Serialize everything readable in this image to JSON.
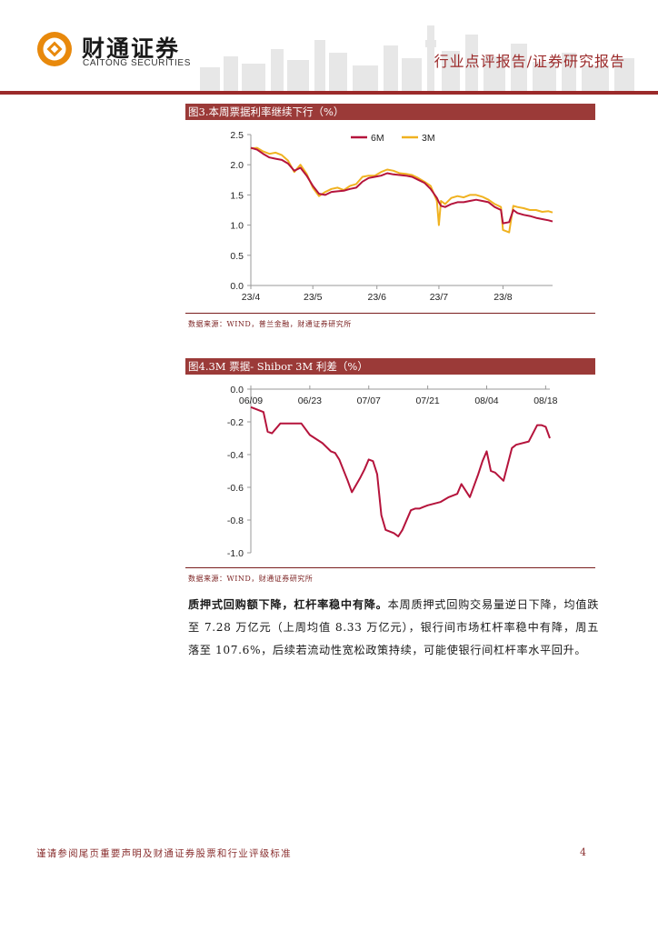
{
  "header": {
    "brand_cn": "财通证券",
    "brand_en": "CAITONG SECURITIES",
    "report_type": "行业点评报告/证券研究报告",
    "colors": {
      "accent": "#9b2a2a",
      "logo": "#e8890c"
    }
  },
  "figure3": {
    "title": "图3.本周票据利率继续下行（%）",
    "source": "数据来源：WIND，普兰金融，财通证券研究所",
    "chart_data": {
      "type": "line",
      "title": "",
      "xlabel": "",
      "ylabel": "",
      "ylim": [
        0,
        2.5
      ],
      "yticks": [
        "0.0",
        "0.5",
        "1.0",
        "1.5",
        "2.0",
        "2.5"
      ],
      "xticks": [
        "23/4",
        "23/5",
        "23/6",
        "23/7",
        "23/8"
      ],
      "x": [
        "2023-04-01",
        "2023-04-04",
        "2023-04-07",
        "2023-04-10",
        "2023-04-13",
        "2023-04-16",
        "2023-04-19",
        "2023-04-22",
        "2023-04-25",
        "2023-04-28",
        "2023-05-01",
        "2023-05-04",
        "2023-05-07",
        "2023-05-10",
        "2023-05-13",
        "2023-05-16",
        "2023-05-19",
        "2023-05-22",
        "2023-05-25",
        "2023-05-28",
        "2023-05-31",
        "2023-06-03",
        "2023-06-06",
        "2023-06-09",
        "2023-06-12",
        "2023-06-15",
        "2023-06-18",
        "2023-06-21",
        "2023-06-24",
        "2023-06-27",
        "2023-06-30",
        "2023-07-01",
        "2023-07-02",
        "2023-07-04",
        "2023-07-07",
        "2023-07-10",
        "2023-07-13",
        "2023-07-16",
        "2023-07-19",
        "2023-07-22",
        "2023-07-25",
        "2023-07-28",
        "2023-07-31",
        "2023-08-01",
        "2023-08-04",
        "2023-08-06",
        "2023-08-08",
        "2023-08-11",
        "2023-08-14",
        "2023-08-17",
        "2023-08-20",
        "2023-08-23",
        "2023-08-25"
      ],
      "series": [
        {
          "name": "6M",
          "color": "#b5143c",
          "values": [
            2.28,
            2.25,
            2.18,
            2.12,
            2.1,
            2.08,
            2.02,
            1.9,
            1.95,
            1.82,
            1.65,
            1.52,
            1.5,
            1.55,
            1.56,
            1.57,
            1.6,
            1.62,
            1.72,
            1.78,
            1.8,
            1.82,
            1.86,
            1.84,
            1.83,
            1.82,
            1.8,
            1.75,
            1.7,
            1.6,
            1.45,
            1.38,
            1.32,
            1.3,
            1.35,
            1.38,
            1.38,
            1.4,
            1.42,
            1.4,
            1.38,
            1.3,
            1.25,
            1.03,
            1.05,
            1.25,
            1.2,
            1.17,
            1.15,
            1.12,
            1.1,
            1.08,
            1.06
          ]
        },
        {
          "name": "3M",
          "color": "#f0b220",
          "values": [
            2.27,
            2.28,
            2.22,
            2.18,
            2.2,
            2.16,
            2.07,
            1.88,
            2.0,
            1.85,
            1.62,
            1.48,
            1.55,
            1.6,
            1.62,
            1.58,
            1.65,
            1.68,
            1.8,
            1.82,
            1.82,
            1.88,
            1.92,
            1.9,
            1.86,
            1.85,
            1.83,
            1.78,
            1.72,
            1.65,
            1.4,
            1.0,
            1.4,
            1.35,
            1.45,
            1.48,
            1.46,
            1.5,
            1.5,
            1.47,
            1.42,
            1.35,
            1.3,
            0.92,
            0.88,
            1.32,
            1.3,
            1.28,
            1.25,
            1.25,
            1.22,
            1.23,
            1.21
          ]
        }
      ],
      "legend": "top-center",
      "grid": false
    }
  },
  "figure4": {
    "title": "图4.3M 票据- Shibor 3M 利差（%）",
    "source": "数据来源：WIND，财通证券研究所",
    "chart_data": {
      "type": "line",
      "title": "",
      "xlabel": "",
      "ylabel": "",
      "ylim": [
        -1.0,
        0.0
      ],
      "yticks": [
        "0.0",
        "-0.2",
        "-0.4",
        "-0.6",
        "-0.8",
        "-1.0"
      ],
      "xticks": [
        "06/09",
        "06/23",
        "07/07",
        "07/21",
        "08/04",
        "08/18"
      ],
      "x": [
        "2023-06-09",
        "2023-06-10",
        "2023-06-12",
        "2023-06-13",
        "2023-06-14",
        "2023-06-16",
        "2023-06-19",
        "2023-06-21",
        "2023-06-23",
        "2023-06-26",
        "2023-06-28",
        "2023-06-29",
        "2023-06-30",
        "2023-07-02",
        "2023-07-03",
        "2023-07-05",
        "2023-07-06",
        "2023-07-07",
        "2023-07-08",
        "2023-07-09",
        "2023-07-10",
        "2023-07-11",
        "2023-07-13",
        "2023-07-14",
        "2023-07-15",
        "2023-07-17",
        "2023-07-18",
        "2023-07-19",
        "2023-07-20",
        "2023-07-21",
        "2023-07-24",
        "2023-07-26",
        "2023-07-28",
        "2023-07-29",
        "2023-07-31",
        "2023-08-02",
        "2023-08-03",
        "2023-08-04",
        "2023-08-05",
        "2023-08-06",
        "2023-08-08",
        "2023-08-10",
        "2023-08-11",
        "2023-08-14",
        "2023-08-16",
        "2023-08-17",
        "2023-08-18",
        "2023-08-19"
      ],
      "series": [
        {
          "name": "",
          "color": "#b5143c",
          "values": [
            -0.11,
            -0.12,
            -0.14,
            -0.26,
            -0.27,
            -0.21,
            -0.21,
            -0.21,
            -0.28,
            -0.33,
            -0.38,
            -0.39,
            -0.43,
            -0.56,
            -0.63,
            -0.54,
            -0.49,
            -0.43,
            -0.44,
            -0.52,
            -0.77,
            -0.86,
            -0.88,
            -0.9,
            -0.86,
            -0.74,
            -0.73,
            -0.73,
            -0.72,
            -0.71,
            -0.69,
            -0.66,
            -0.64,
            -0.58,
            -0.66,
            -0.52,
            -0.44,
            -0.38,
            -0.5,
            -0.51,
            -0.56,
            -0.36,
            -0.34,
            -0.32,
            -0.22,
            -0.22,
            -0.23,
            -0.3
          ]
        }
      ],
      "legend": "none",
      "grid": false
    }
  },
  "paragraph": {
    "lead": "质押式回购额下降，杠杆率稳中有降。",
    "body": "本周质押式回购交易量逆日下降，均值跌至 7.28 万亿元（上周均值 8.33 万亿元），银行间市场杠杆率稳中有降，周五落至 107.6%，后续若流动性宽松政策持续，可能使银行间杠杆率水平回升。"
  },
  "footer": {
    "note": "谨请参阅尾页重要声明及财通证券股票和行业评级标准",
    "page": "4"
  }
}
